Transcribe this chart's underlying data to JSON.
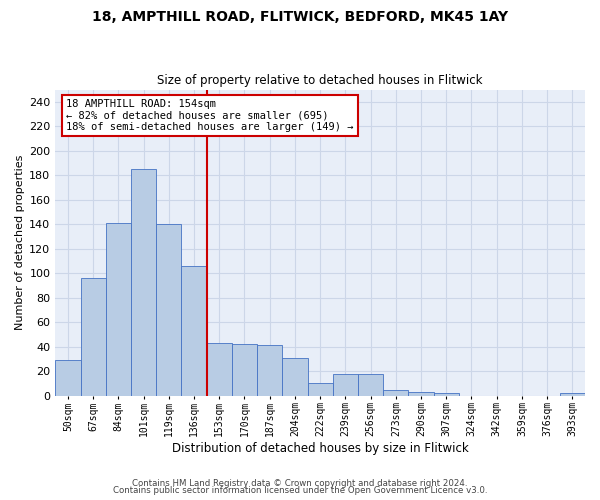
{
  "title_line1": "18, AMPTHILL ROAD, FLITWICK, BEDFORD, MK45 1AY",
  "title_line2": "Size of property relative to detached houses in Flitwick",
  "xlabel": "Distribution of detached houses by size in Flitwick",
  "ylabel": "Number of detached properties",
  "footer_line1": "Contains HM Land Registry data © Crown copyright and database right 2024.",
  "footer_line2": "Contains public sector information licensed under the Open Government Licence v3.0.",
  "bins": [
    "50sqm",
    "67sqm",
    "84sqm",
    "101sqm",
    "119sqm",
    "136sqm",
    "153sqm",
    "170sqm",
    "187sqm",
    "204sqm",
    "222sqm",
    "239sqm",
    "256sqm",
    "273sqm",
    "290sqm",
    "307sqm",
    "324sqm",
    "342sqm",
    "359sqm",
    "376sqm",
    "393sqm"
  ],
  "values": [
    29,
    96,
    141,
    185,
    140,
    106,
    43,
    42,
    41,
    31,
    10,
    18,
    18,
    5,
    3,
    2,
    0,
    0,
    0,
    0,
    2
  ],
  "bar_color": "#b8cce4",
  "bar_edge_color": "#4472c4",
  "vline_x_index": 6,
  "vline_color": "#cc0000",
  "annotation_text": "18 AMPTHILL ROAD: 154sqm\n← 82% of detached houses are smaller (695)\n18% of semi-detached houses are larger (149) →",
  "annotation_box_color": "#ffffff",
  "annotation_box_edge": "#cc0000",
  "ylim": [
    0,
    250
  ],
  "yticks": [
    0,
    20,
    40,
    60,
    80,
    100,
    120,
    140,
    160,
    180,
    200,
    220,
    240
  ],
  "grid_color": "#ccd6e8",
  "background_color": "#e8eef8"
}
